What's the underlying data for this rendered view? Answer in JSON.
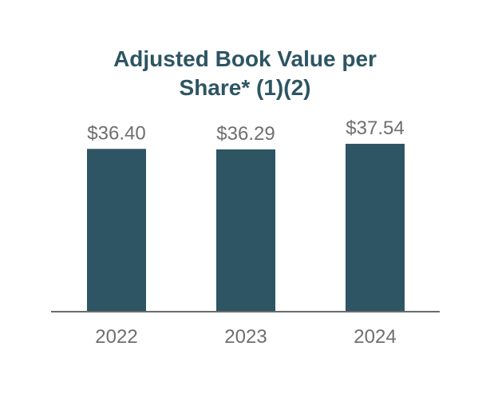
{
  "chart_data": {
    "type": "bar",
    "title_lines": [
      "Adjusted Book Value per",
      "Share* (1)(2)"
    ],
    "categories": [
      "2022",
      "2023",
      "2024"
    ],
    "values": [
      36.4,
      36.29,
      37.54
    ],
    "value_labels": [
      "$36.40",
      "$36.29",
      "$37.54"
    ],
    "xlabel": "",
    "ylabel": "",
    "grid": false,
    "legend": "none",
    "colors": {
      "bar": "#2d5563",
      "title": "#2d5563",
      "text": "#6f6f6f",
      "axis": "#6b6b6b"
    }
  }
}
